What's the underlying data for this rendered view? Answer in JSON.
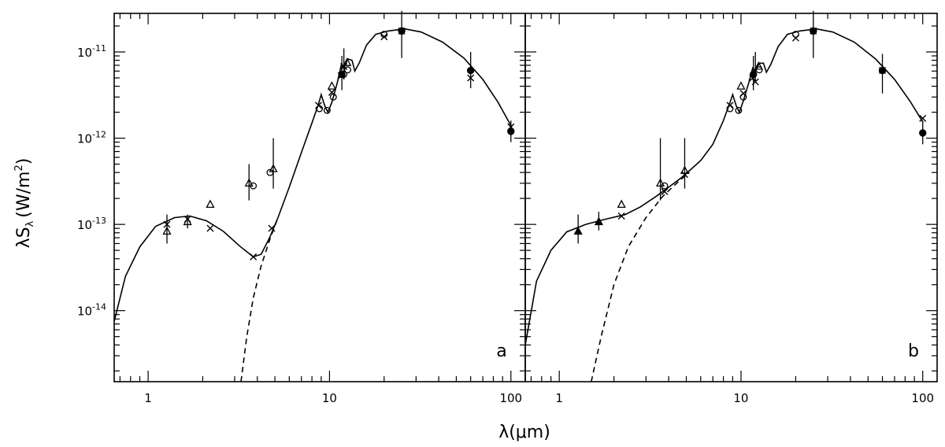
{
  "chart_data": [
    {
      "type": "scatter",
      "panel_label": "a",
      "xscale": "log",
      "yscale": "log",
      "xlim": [
        0.65,
        120
      ],
      "ylim": [
        1.5e-15,
        2.8e-11
      ],
      "x_ticks": [
        {
          "value": 1,
          "label": "1"
        },
        {
          "value": 10,
          "label": "10"
        },
        {
          "value": 100,
          "label": "100"
        }
      ],
      "y_ticks": [
        {
          "value": 1e-11,
          "mantissa": "10",
          "exponent": "-11"
        },
        {
          "value": 1e-12,
          "mantissa": "10",
          "exponent": "-12"
        },
        {
          "value": 1e-13,
          "mantissa": "10",
          "exponent": "-13"
        },
        {
          "value": 1e-14,
          "mantissa": "10",
          "exponent": "-14"
        }
      ],
      "series": [
        {
          "style": "solid-line",
          "points": [
            [
              0.65,
              7.5e-15
            ],
            [
              0.75,
              2.5e-14
            ],
            [
              0.9,
              5.5e-14
            ],
            [
              1.1,
              9.5e-14
            ],
            [
              1.4,
              1.2e-13
            ],
            [
              1.7,
              1.25e-13
            ],
            [
              2.1,
              1.1e-13
            ],
            [
              2.6,
              8.3e-14
            ],
            [
              3.2,
              5.6e-14
            ],
            [
              3.8,
              4.2e-14
            ],
            [
              4.2,
              4.5e-14
            ],
            [
              4.7,
              7.2e-14
            ],
            [
              5.2,
              1.2e-13
            ],
            [
              6.0,
              2.7e-13
            ],
            [
              7.0,
              6.8e-13
            ],
            [
              8.0,
              1.5e-12
            ],
            [
              8.7,
              2.5e-12
            ],
            [
              9.0,
              3.2e-12
            ],
            [
              9.4,
              2.4e-12
            ],
            [
              9.8,
              2e-12
            ],
            [
              10.3,
              2.6e-12
            ],
            [
              11.0,
              4.3e-12
            ],
            [
              11.6,
              7e-12
            ],
            [
              12.0,
              6.5e-12
            ],
            [
              12.6,
              8.3e-12
            ],
            [
              13.3,
              8e-12
            ],
            [
              13.8,
              6e-12
            ],
            [
              14.6,
              7.5e-12
            ],
            [
              16.0,
              1.2e-11
            ],
            [
              18.0,
              1.6e-11
            ],
            [
              21.0,
              1.75e-11
            ],
            [
              26.0,
              1.85e-11
            ],
            [
              32.0,
              1.7e-11
            ],
            [
              42.0,
              1.3e-11
            ],
            [
              55.0,
              8.5e-12
            ],
            [
              70.0,
              4.8e-12
            ],
            [
              85.0,
              2.6e-12
            ],
            [
              100.0,
              1.4e-12
            ]
          ]
        },
        {
          "style": "dashed-line",
          "points": [
            [
              3.25,
              1.5e-15
            ],
            [
              3.5,
              5e-15
            ],
            [
              3.8,
              1.4e-14
            ],
            [
              4.2,
              3.3e-14
            ],
            [
              4.7,
              6.8e-14
            ],
            [
              5.2,
              1.2e-13
            ]
          ]
        },
        {
          "style": "crosses",
          "points": [
            [
              1.27,
              1e-13
            ],
            [
              1.65,
              1.15e-13
            ],
            [
              2.2,
              9e-14
            ],
            [
              3.8,
              4.2e-14
            ],
            [
              4.8,
              9e-14
            ],
            [
              8.7,
              2.4e-12
            ],
            [
              10.3,
              3.4e-12
            ],
            [
              11.6,
              5.3e-12
            ],
            [
              12.0,
              6.8e-12
            ],
            [
              20.0,
              1.5e-11
            ],
            [
              25.0,
              1.75e-11
            ],
            [
              60.0,
              5e-12
            ],
            [
              100.0,
              1.35e-12
            ]
          ]
        },
        {
          "style": "triangles",
          "points": [
            [
              1.27,
              8.3e-14
            ],
            [
              1.65,
              1.07e-13
            ],
            [
              2.2,
              1.7e-13
            ],
            [
              3.6,
              3e-13
            ],
            [
              4.9,
              4.4e-13
            ],
            [
              10.3,
              4e-12
            ],
            [
              12.5,
              7.5e-12
            ]
          ]
        },
        {
          "style": "circles",
          "points": [
            [
              3.8,
              2.8e-13
            ],
            [
              4.7,
              4e-13
            ],
            [
              8.8,
              2.2e-12
            ],
            [
              9.7,
              2.1e-12
            ],
            [
              10.5,
              3e-12
            ],
            [
              12.0,
              5.5e-12
            ],
            [
              12.6,
              6.2e-12
            ],
            [
              20.0,
              1.6e-11
            ]
          ]
        },
        {
          "style": "filled-circles",
          "points": [
            [
              11.7,
              5.5e-12
            ],
            [
              25.0,
              1.75e-11
            ],
            [
              60.0,
              6.1e-12
            ],
            [
              100.0,
              1.2e-12
            ]
          ]
        }
      ],
      "error_bars": [
        [
          1.27,
          6e-14,
          1.3e-13
        ],
        [
          1.65,
          9e-14,
          1.3e-13
        ],
        [
          3.6,
          1.9e-13,
          5e-13
        ],
        [
          4.9,
          2.6e-13,
          1e-12
        ],
        [
          11.7,
          3.6e-12,
          9e-12
        ],
        [
          12.0,
          4.8e-12,
          1.1e-11
        ],
        [
          25.0,
          8.5e-12,
          3e-11
        ],
        [
          60.0,
          3.8e-12,
          1e-11
        ],
        [
          100.0,
          9e-13,
          1.6e-12
        ]
      ]
    },
    {
      "type": "scatter",
      "panel_label": "b",
      "xscale": "log",
      "yscale": "log",
      "xlim": [
        0.65,
        120
      ],
      "ylim": [
        1.5e-15,
        2.8e-11
      ],
      "x_ticks": [
        {
          "value": 1,
          "label": "1"
        },
        {
          "value": 10,
          "label": "10"
        },
        {
          "value": 100,
          "label": "100"
        }
      ],
      "series": [
        {
          "style": "solid-line",
          "points": [
            [
              0.65,
              4e-15
            ],
            [
              0.75,
              2.2e-14
            ],
            [
              0.9,
              5e-14
            ],
            [
              1.1,
              8.2e-14
            ],
            [
              1.4,
              1e-13
            ],
            [
              1.8,
              1.15e-13
            ],
            [
              2.3,
              1.3e-13
            ],
            [
              2.8,
              1.6e-13
            ],
            [
              3.4,
              2.1e-13
            ],
            [
              4.0,
              2.7e-13
            ],
            [
              4.8,
              3.6e-13
            ],
            [
              6.0,
              5.5e-13
            ],
            [
              7.0,
              8.5e-13
            ],
            [
              8.0,
              1.6e-12
            ],
            [
              8.7,
              2.6e-12
            ],
            [
              9.0,
              3.2e-12
            ],
            [
              9.4,
              2.4e-12
            ],
            [
              9.8,
              2e-12
            ],
            [
              10.3,
              2.7e-12
            ],
            [
              11.0,
              4.3e-12
            ],
            [
              11.6,
              6.5e-12
            ],
            [
              12.0,
              6e-12
            ],
            [
              12.6,
              7.4e-12
            ],
            [
              13.3,
              7.4e-12
            ],
            [
              13.8,
              5.8e-12
            ],
            [
              14.6,
              7.2e-12
            ],
            [
              16.0,
              1.15e-11
            ],
            [
              18.0,
              1.6e-11
            ],
            [
              21.0,
              1.75e-11
            ],
            [
              26.0,
              1.85e-11
            ],
            [
              32.0,
              1.7e-11
            ],
            [
              42.0,
              1.3e-11
            ],
            [
              55.0,
              8.3e-12
            ],
            [
              70.0,
              4.8e-12
            ],
            [
              85.0,
              2.7e-12
            ],
            [
              100.0,
              1.55e-12
            ]
          ]
        },
        {
          "style": "dashed-line",
          "points": [
            [
              1.5,
              1.5e-15
            ],
            [
              1.7,
              5e-15
            ],
            [
              2.0,
              2e-14
            ],
            [
              2.4,
              5.5e-14
            ],
            [
              3.0,
              1.2e-13
            ],
            [
              3.7,
              2.1e-13
            ],
            [
              4.5,
              3.1e-13
            ],
            [
              5.2,
              4e-13
            ]
          ]
        },
        {
          "style": "crosses",
          "points": [
            [
              2.2,
              1.25e-13
            ],
            [
              3.8,
              2.4e-13
            ],
            [
              4.9,
              3.8e-13
            ],
            [
              8.7,
              2.4e-12
            ],
            [
              10.3,
              3.3e-12
            ],
            [
              11.6,
              5e-12
            ],
            [
              12.0,
              4.5e-12
            ],
            [
              20.0,
              1.45e-11
            ],
            [
              25.0,
              1.75e-11
            ],
            [
              60.0,
              6.1e-12
            ],
            [
              100.0,
              1.7e-12
            ]
          ]
        },
        {
          "style": "triangles",
          "points": [
            [
              2.2,
              1.7e-13
            ],
            [
              3.6,
              3e-13
            ],
            [
              4.9,
              4.2e-13
            ],
            [
              10.0,
              4e-12
            ],
            [
              12.5,
              6.8e-12
            ]
          ]
        },
        {
          "style": "filled-triangles",
          "points": [
            [
              1.27,
              8.3e-14
            ],
            [
              1.65,
              1.07e-13
            ]
          ]
        },
        {
          "style": "circles",
          "points": [
            [
              3.8,
              2.8e-13
            ],
            [
              8.7,
              2.2e-12
            ],
            [
              9.7,
              2.1e-12
            ],
            [
              10.3,
              3e-12
            ],
            [
              12.6,
              6.2e-12
            ],
            [
              20.0,
              1.6e-11
            ]
          ]
        },
        {
          "style": "filled-circles",
          "points": [
            [
              11.7,
              5.5e-12
            ],
            [
              25.0,
              1.75e-11
            ],
            [
              60.0,
              6.1e-12
            ],
            [
              100.0,
              1.15e-12
            ]
          ]
        }
      ],
      "error_bars": [
        [
          1.27,
          6e-14,
          1.3e-13
        ],
        [
          1.65,
          8.5e-14,
          1.4e-13
        ],
        [
          3.6,
          1.9e-13,
          1e-12
        ],
        [
          4.9,
          2.6e-13,
          1e-12
        ],
        [
          11.7,
          3.6e-12,
          9e-12
        ],
        [
          12.0,
          4.4e-12,
          1e-11
        ],
        [
          25.0,
          8.5e-12,
          3e-11
        ],
        [
          60.0,
          3.3e-12,
          9.5e-12
        ],
        [
          100.0,
          8.5e-13,
          1.6e-12
        ]
      ]
    }
  ],
  "axis_titles": {
    "y_lambda": "λS",
    "y_sub": "λ",
    "y_units_open": "(W/m",
    "y_units_sup": "2",
    "y_units_close": ")",
    "x": "λ(μm)"
  }
}
